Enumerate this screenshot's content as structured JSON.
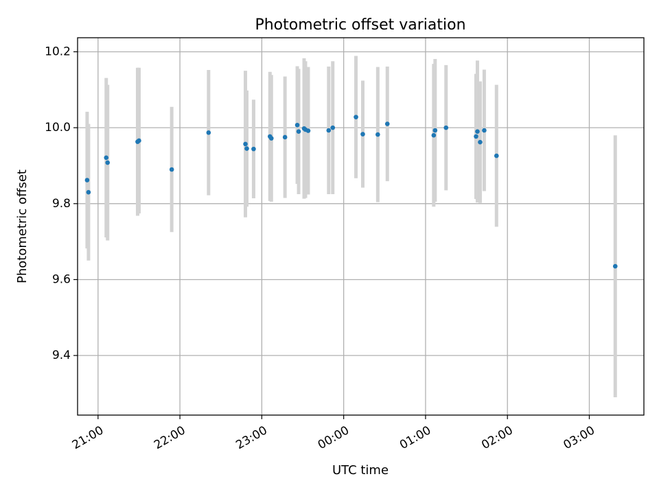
{
  "chart_data": {
    "type": "scatter",
    "title": "Photometric offset variation",
    "xlabel": "UTC time",
    "ylabel": "Photometric offset",
    "x_axis_type": "time",
    "xlim": [
      "20:45",
      "03:40"
    ],
    "ylim": [
      9.243,
      10.237
    ],
    "grid": true,
    "x_ticks": [
      "21:00",
      "22:00",
      "23:00",
      "00:00",
      "01:00",
      "02:00",
      "03:00"
    ],
    "y_ticks": [
      9.4,
      9.6,
      9.8,
      10.0,
      10.2
    ],
    "colors": {
      "point": "#1f77b4",
      "errorbar": "#d3d3d3"
    },
    "points": [
      {
        "time": "20:52",
        "y": 9.862,
        "err": 0.18
      },
      {
        "time": "20:53",
        "y": 9.83,
        "err": 0.18
      },
      {
        "time": "21:06",
        "y": 9.921,
        "err": 0.21
      },
      {
        "time": "21:07",
        "y": 9.908,
        "err": 0.205
      },
      {
        "time": "21:29",
        "y": 9.963,
        "err": 0.195
      },
      {
        "time": "21:30",
        "y": 9.966,
        "err": 0.192
      },
      {
        "time": "21:54",
        "y": 9.89,
        "err": 0.165
      },
      {
        "time": "22:21",
        "y": 9.987,
        "err": 0.165
      },
      {
        "time": "22:48",
        "y": 9.957,
        "err": 0.193
      },
      {
        "time": "22:49",
        "y": 9.945,
        "err": 0.153
      },
      {
        "time": "22:54",
        "y": 9.944,
        "err": 0.13
      },
      {
        "time": "23:06",
        "y": 9.977,
        "err": 0.17
      },
      {
        "time": "23:07",
        "y": 9.972,
        "err": 0.167
      },
      {
        "time": "23:17",
        "y": 9.975,
        "err": 0.16
      },
      {
        "time": "23:26",
        "y": 10.007,
        "err": 0.155
      },
      {
        "time": "23:27",
        "y": 9.99,
        "err": 0.165
      },
      {
        "time": "23:31",
        "y": 9.998,
        "err": 0.185
      },
      {
        "time": "23:32",
        "y": 9.995,
        "err": 0.18
      },
      {
        "time": "23:34",
        "y": 9.992,
        "err": 0.168
      },
      {
        "time": "23:49",
        "y": 9.993,
        "err": 0.168
      },
      {
        "time": "23:52",
        "y": 10.0,
        "err": 0.175
      },
      {
        "time": "00:09",
        "y": 10.028,
        "err": 0.161
      },
      {
        "time": "00:14",
        "y": 9.983,
        "err": 0.141
      },
      {
        "time": "00:25",
        "y": 9.982,
        "err": 0.178
      },
      {
        "time": "00:32",
        "y": 10.01,
        "err": 0.151
      },
      {
        "time": "01:06",
        "y": 9.98,
        "err": 0.188
      },
      {
        "time": "01:07",
        "y": 9.993,
        "err": 0.188
      },
      {
        "time": "01:15",
        "y": 10.0,
        "err": 0.165
      },
      {
        "time": "01:37",
        "y": 9.977,
        "err": 0.165
      },
      {
        "time": "01:38",
        "y": 9.99,
        "err": 0.187
      },
      {
        "time": "01:40",
        "y": 9.962,
        "err": 0.16
      },
      {
        "time": "01:43",
        "y": 9.993,
        "err": 0.16
      },
      {
        "time": "01:52",
        "y": 9.926,
        "err": 0.187
      },
      {
        "time": "03:19",
        "y": 9.635,
        "err": 0.345
      }
    ]
  }
}
